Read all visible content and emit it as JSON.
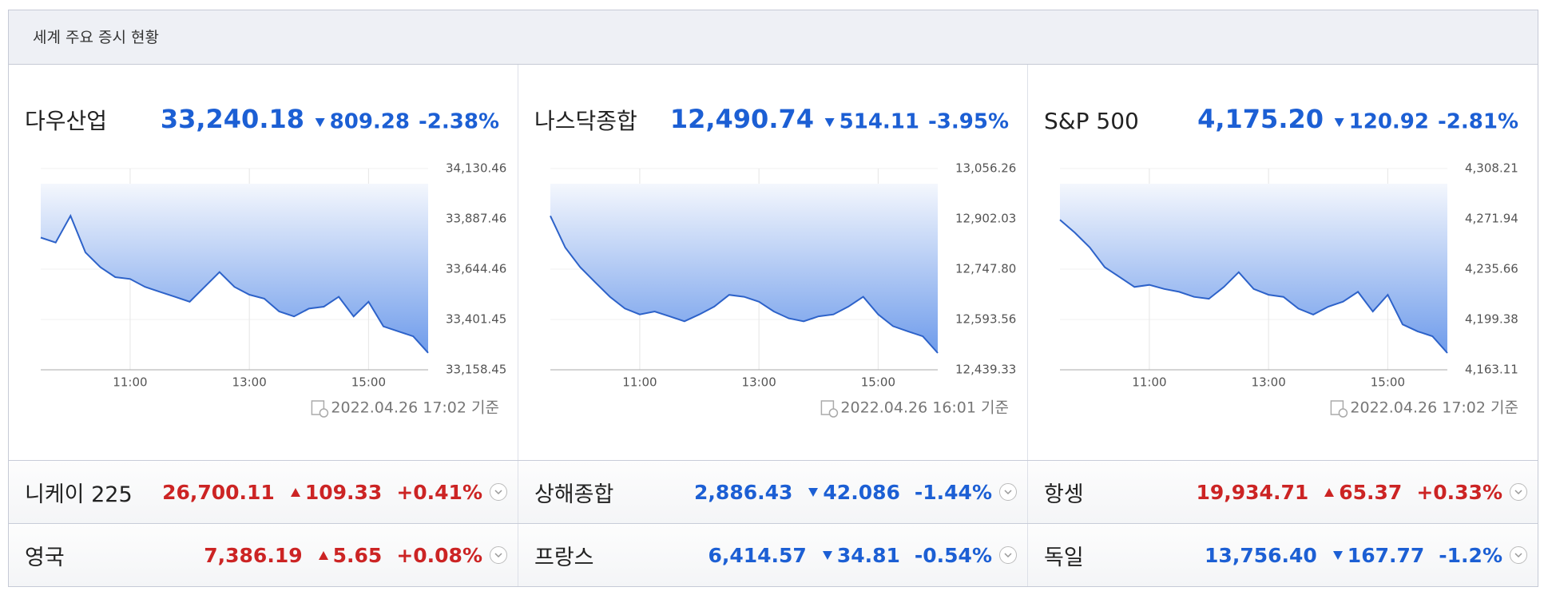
{
  "header": {
    "title": "세계 주요 증시 현황"
  },
  "indices": [
    {
      "name": "다우산업",
      "value": "33,240.18",
      "change": "809.28",
      "change_pct": "-2.38%",
      "direction": "down",
      "as_of": "2022.04.26 17:02 기준"
    },
    {
      "name": "나스닥종합",
      "value": "12,490.74",
      "change": "514.11",
      "change_pct": "-3.95%",
      "direction": "down",
      "as_of": "2022.04.26 16:01 기준"
    },
    {
      "name": "S&P 500",
      "value": "4,175.20",
      "change": "120.92",
      "change_pct": "-2.81%",
      "direction": "down",
      "as_of": "2022.04.26 17:02 기준"
    }
  ],
  "chart_data": [
    {
      "type": "area",
      "color": "#2d62c9",
      "grid": true,
      "x": [
        9.5,
        9.75,
        10,
        10.25,
        10.5,
        10.75,
        11,
        11.25,
        11.5,
        11.75,
        12,
        12.25,
        12.5,
        12.75,
        13,
        13.25,
        13.5,
        13.75,
        14,
        14.25,
        14.5,
        14.75,
        15,
        15.25,
        15.5,
        15.75,
        16
      ],
      "values": [
        33797,
        33773,
        33902,
        33725,
        33654,
        33606,
        33597,
        33559,
        33535,
        33511,
        33487,
        33559,
        33630,
        33559,
        33521,
        33502,
        33440,
        33416,
        33454,
        33463,
        33511,
        33416,
        33487,
        33368,
        33344,
        33320,
        33240.18
      ],
      "xlim": [
        9.5,
        16
      ],
      "xticks": [
        {
          "value": 11,
          "label": "11:00"
        },
        {
          "value": 13,
          "label": "13:00"
        },
        {
          "value": 15,
          "label": "15:00"
        }
      ],
      "ylim": [
        33158.45,
        34130.46
      ],
      "yticks": [
        {
          "value": 34130.46,
          "label": "34,130.46"
        },
        {
          "value": 33887.46,
          "label": "33,887.46"
        },
        {
          "value": 33644.46,
          "label": "33,644.46"
        },
        {
          "value": 33401.45,
          "label": "33,401.45"
        },
        {
          "value": 33158.45,
          "label": "33,158.45"
        }
      ]
    },
    {
      "type": "area",
      "color": "#2d62c9",
      "grid": true,
      "x": [
        9.5,
        9.75,
        10,
        10.25,
        10.5,
        10.75,
        11,
        11.25,
        11.5,
        11.75,
        12,
        12.25,
        12.5,
        12.75,
        13,
        13.25,
        13.5,
        13.75,
        14,
        14.25,
        14.5,
        14.75,
        15,
        15.25,
        15.5,
        15.75,
        16
      ],
      "values": [
        12911,
        12814,
        12754,
        12708,
        12663,
        12627,
        12609,
        12618,
        12603,
        12588,
        12609,
        12633,
        12669,
        12663,
        12648,
        12618,
        12597,
        12588,
        12603,
        12609,
        12633,
        12663,
        12609,
        12573,
        12557,
        12542,
        12490.74
      ],
      "xlim": [
        9.5,
        16
      ],
      "xticks": [
        {
          "value": 11,
          "label": "11:00"
        },
        {
          "value": 13,
          "label": "13:00"
        },
        {
          "value": 15,
          "label": "15:00"
        }
      ],
      "ylim": [
        12439.33,
        13056.26
      ],
      "yticks": [
        {
          "value": 13056.26,
          "label": "13,056.26"
        },
        {
          "value": 12902.03,
          "label": "12,902.03"
        },
        {
          "value": 12747.8,
          "label": "12,747.80"
        },
        {
          "value": 12593.56,
          "label": "12,593.56"
        },
        {
          "value": 12439.33,
          "label": "12,439.33"
        }
      ]
    },
    {
      "type": "area",
      "color": "#2d62c9",
      "grid": true,
      "x": [
        9.5,
        9.75,
        10,
        10.25,
        10.5,
        10.75,
        11,
        11.25,
        11.5,
        11.75,
        12,
        12.25,
        12.5,
        12.75,
        13,
        13.25,
        13.5,
        13.75,
        14,
        14.25,
        14.5,
        14.75,
        15,
        15.25,
        15.5,
        15.75,
        16
      ],
      "values": [
        4271.2,
        4261.9,
        4251.3,
        4237.1,
        4230.0,
        4222.8,
        4224.3,
        4221.4,
        4219.3,
        4215.7,
        4214.3,
        4222.8,
        4233.5,
        4221.4,
        4217.2,
        4215.7,
        4207.2,
        4202.9,
        4208.6,
        4212.2,
        4219.3,
        4205.1,
        4217.2,
        4195.8,
        4190.8,
        4187.3,
        4175.2
      ],
      "xlim": [
        9.5,
        16
      ],
      "xticks": [
        {
          "value": 11,
          "label": "11:00"
        },
        {
          "value": 13,
          "label": "13:00"
        },
        {
          "value": 15,
          "label": "15:00"
        }
      ],
      "ylim": [
        4163.11,
        4308.21
      ],
      "yticks": [
        {
          "value": 4308.21,
          "label": "4,308.21"
        },
        {
          "value": 4271.94,
          "label": "4,271.94"
        },
        {
          "value": 4235.66,
          "label": "4,235.66"
        },
        {
          "value": 4199.38,
          "label": "4,199.38"
        },
        {
          "value": 4163.11,
          "label": "4,163.11"
        }
      ]
    }
  ],
  "markets": [
    {
      "name": "니케이 225",
      "value": "26,700.11",
      "change": "109.33",
      "change_pct": "+0.41%",
      "direction": "up"
    },
    {
      "name": "상해종합",
      "value": "2,886.43",
      "change": "42.086",
      "change_pct": "-1.44%",
      "direction": "down"
    },
    {
      "name": "항셍",
      "value": "19,934.71",
      "change": "65.37",
      "change_pct": "+0.33%",
      "direction": "up"
    },
    {
      "name": "영국",
      "value": "7,386.19",
      "change": "5.65",
      "change_pct": "+0.08%",
      "direction": "up"
    },
    {
      "name": "프랑스",
      "value": "6,414.57",
      "change": "34.81",
      "change_pct": "-0.54%",
      "direction": "down"
    },
    {
      "name": "독일",
      "value": "13,756.40",
      "change": "167.77",
      "change_pct": "-1.2%",
      "direction": "down"
    }
  ]
}
